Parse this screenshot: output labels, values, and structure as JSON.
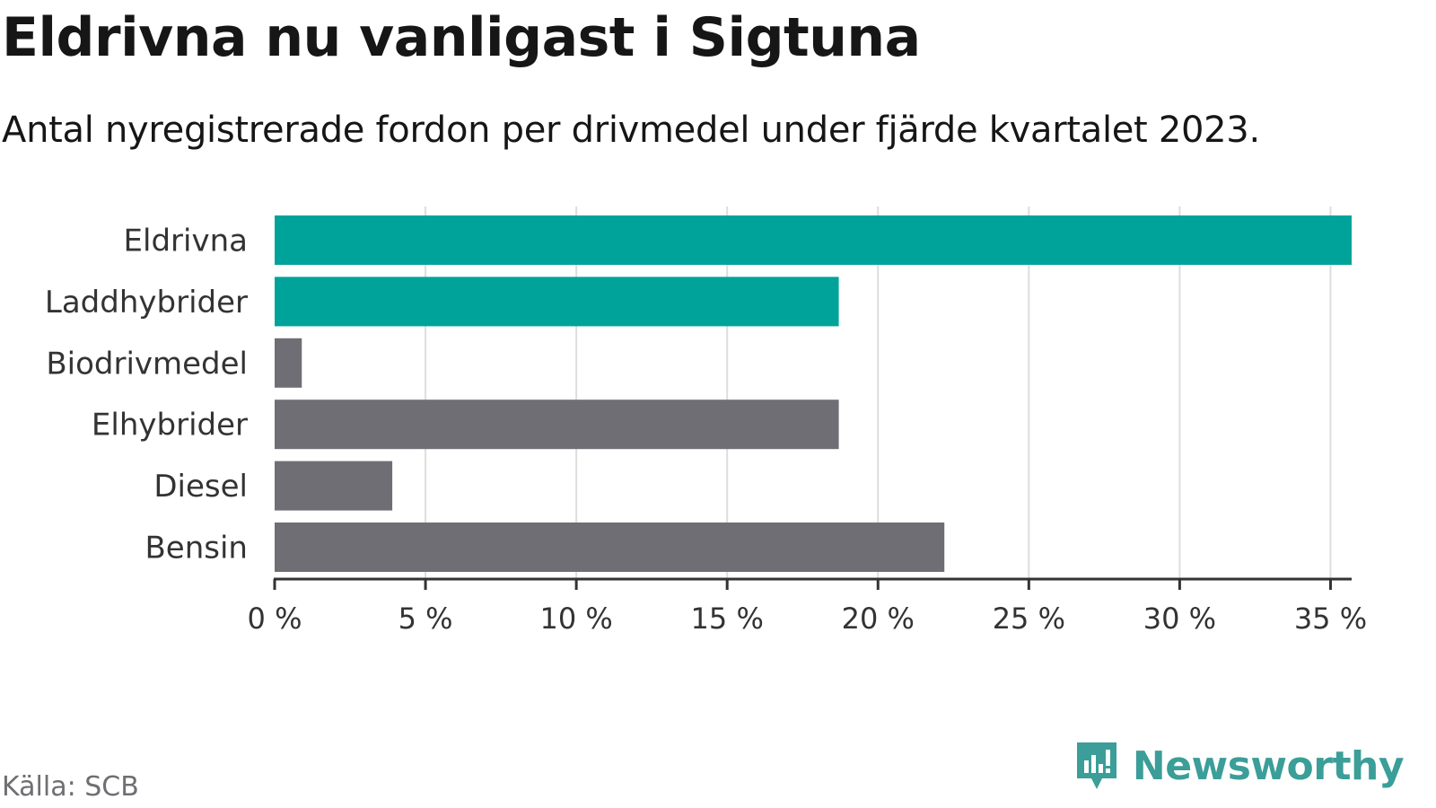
{
  "header": {
    "title": "Eldrivna nu vanligast i Sigtuna",
    "subtitle": "Antal nyregistrerade fordon per drivmedel under fjärde kvartalet 2023."
  },
  "footer": {
    "source": "Källa: SCB",
    "brand": "Newsworthy",
    "brand_icon": "newsworthy-logo-icon"
  },
  "colors": {
    "highlight": "#00a39a",
    "default": "#6f6e74",
    "grid": "#dddddd",
    "axis": "#333333",
    "brand": "#3b9e98"
  },
  "chart_data": {
    "type": "bar",
    "orientation": "horizontal",
    "categories": [
      "Eldrivna",
      "Laddhybrider",
      "Biodrivmedel",
      "Elhybrider",
      "Diesel",
      "Bensin"
    ],
    "values": [
      35.7,
      18.7,
      0.9,
      18.7,
      3.9,
      22.2
    ],
    "highlighted": [
      "Eldrivna",
      "Laddhybrider"
    ],
    "xlim": [
      0,
      35.7
    ],
    "xticks": [
      0,
      5,
      10,
      15,
      20,
      25,
      30,
      35
    ],
    "xtick_labels": [
      "0 %",
      "5 %",
      "10 %",
      "15 %",
      "20 %",
      "25 %",
      "30 %",
      "35 %"
    ],
    "grid": true,
    "legend": "none"
  }
}
